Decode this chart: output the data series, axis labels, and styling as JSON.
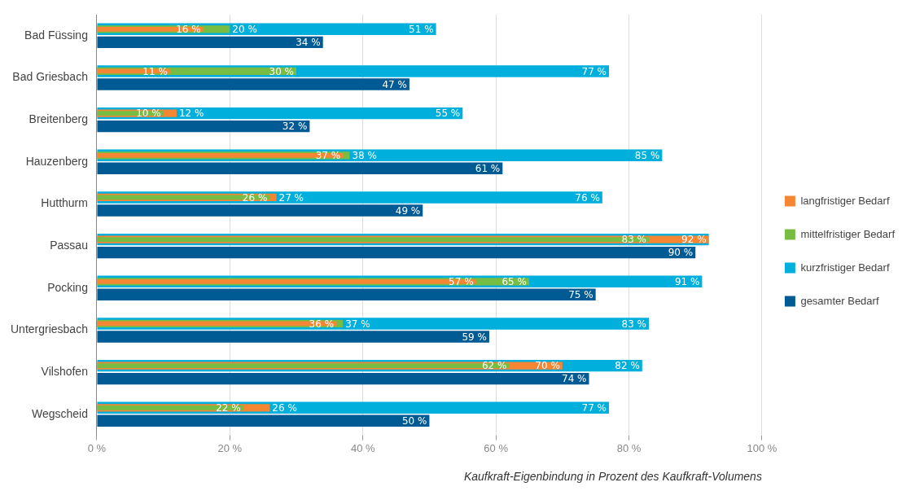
{
  "chart_data": {
    "type": "bar",
    "orientation": "horizontal",
    "xlabel": "Kaufkraft-Eigenbindung in Prozent des Kaufkraft-Volumens",
    "categories": [
      "Bad Füssing",
      "Bad Griesbach",
      "Breitenberg",
      "Hauzenberg",
      "Hutthurm",
      "Passau",
      "Pocking",
      "Untergriesbach",
      "Vilshofen",
      "Wegscheid"
    ],
    "series": [
      {
        "name": "langfristiger Bedarf",
        "color": "#f58634",
        "values": [
          16,
          11,
          12,
          37,
          27,
          92,
          57,
          36,
          70,
          26
        ],
        "value_labels": [
          "16 %",
          "11 %",
          "12 %",
          "37 %",
          "27 %",
          "92 %",
          "57 %",
          "36 %",
          "70 %",
          "26 %"
        ]
      },
      {
        "name": "mittelfristiger Bedarf",
        "color": "#77bc43",
        "values": [
          20,
          30,
          10,
          38,
          26,
          83,
          65,
          37,
          62,
          22
        ],
        "value_labels": [
          "20 %",
          "30 %",
          "10 %",
          "38 %",
          "26 %",
          "83 %",
          "65 %",
          "37 %",
          "62 %",
          "22 %"
        ]
      },
      {
        "name": "kurzfristiger Bedarf",
        "color": "#00afdb",
        "values": [
          51,
          77,
          55,
          85,
          76,
          92,
          91,
          83,
          82,
          77
        ],
        "value_labels": [
          "51 %",
          "77 %",
          "55 %",
          "85 %",
          "76 %",
          null,
          "91 %",
          "83 %",
          "82 %",
          "77 %"
        ]
      },
      {
        "name": "gesamter Bedarf",
        "color": "#005a94",
        "values": [
          34,
          47,
          32,
          61,
          49,
          90,
          75,
          59,
          74,
          50
        ],
        "value_labels": [
          "34 %",
          "47 %",
          "32 %",
          "61 %",
          "49 %",
          "90 %",
          "75 %",
          "59 %",
          "74 %",
          "50 %"
        ]
      }
    ],
    "xlim": [
      0,
      100
    ],
    "xticks": [
      {
        "value": 0,
        "label": "0 %"
      },
      {
        "value": 20,
        "label": "20 %"
      },
      {
        "value": 40,
        "label": "40 %"
      },
      {
        "value": 60,
        "label": "60 %"
      },
      {
        "value": 80,
        "label": "80 %"
      },
      {
        "value": 100,
        "label": "100 %"
      }
    ],
    "grid": "x",
    "legend": "right"
  }
}
